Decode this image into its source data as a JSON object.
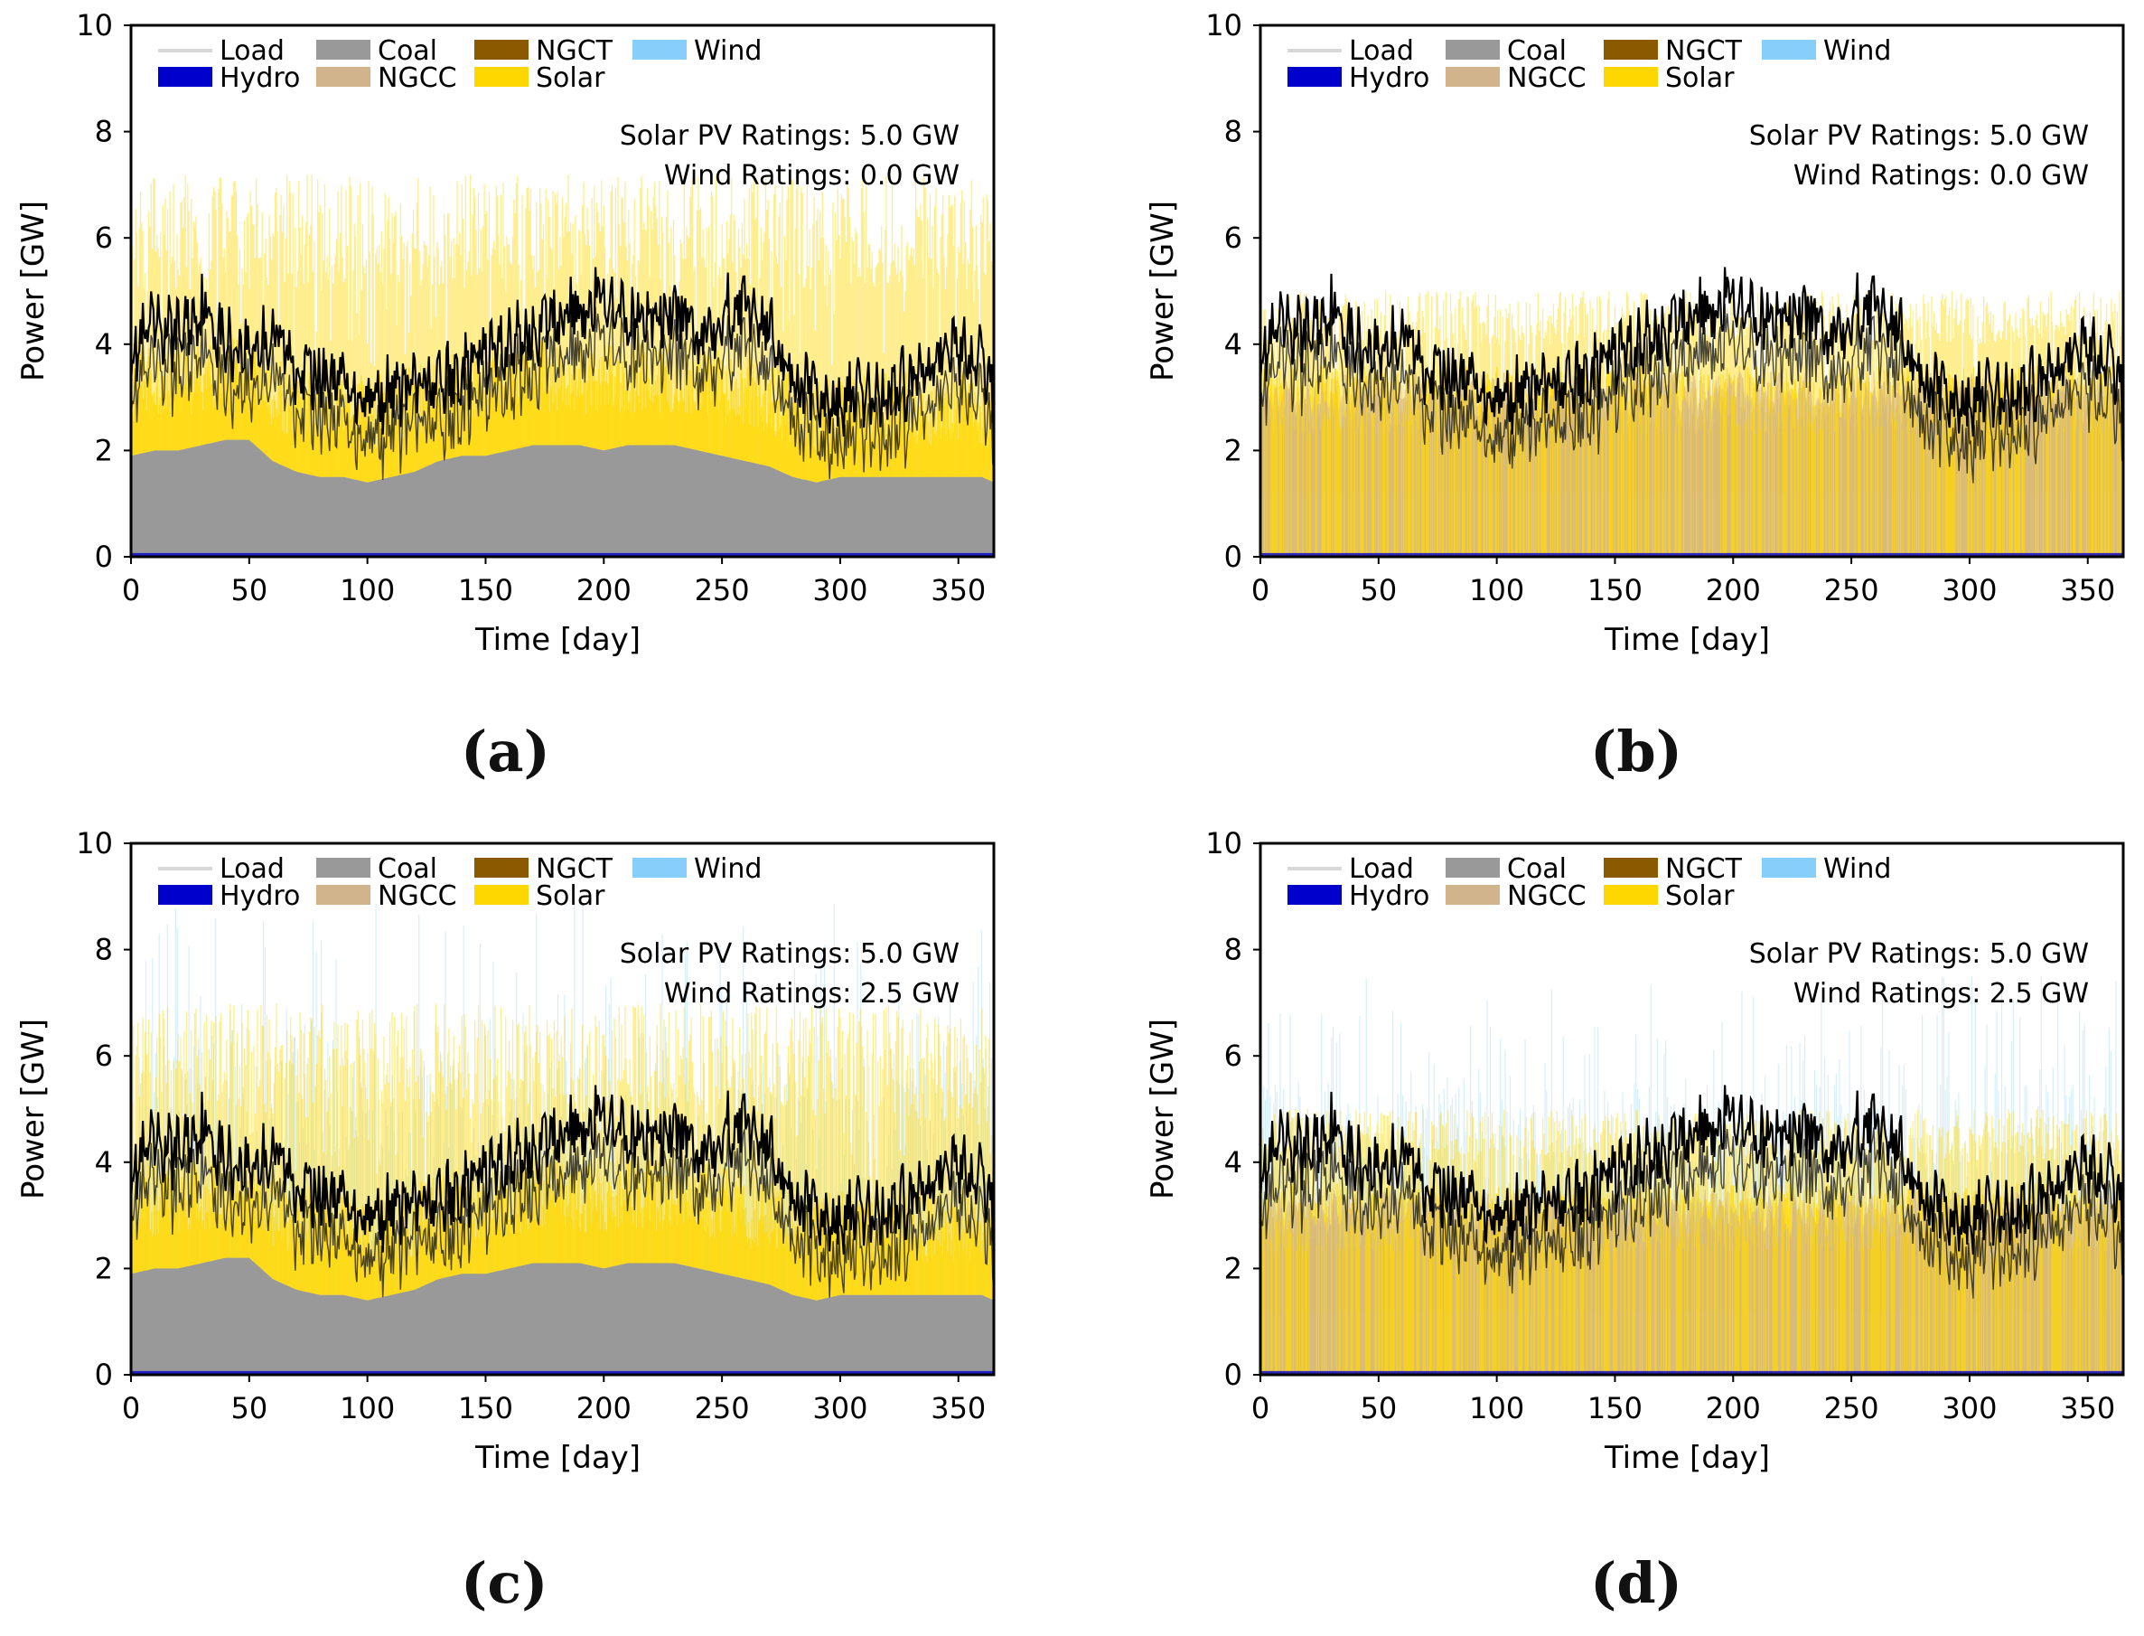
{
  "common": {
    "xlabel": "Time [day]",
    "ylabel": "Power [GW]",
    "x_ticks": [
      "0",
      "50",
      "100",
      "150",
      "200",
      "250",
      "300",
      "350"
    ],
    "y_ticks": [
      "0",
      "2",
      "4",
      "6",
      "8",
      "10"
    ],
    "legend": [
      {
        "label": "Load",
        "color": "#d8d8d8"
      },
      {
        "label": "Coal",
        "color": "#999999"
      },
      {
        "label": "NGCT",
        "color": "#8b5a00"
      },
      {
        "label": "Wind",
        "color": "#87cefa"
      },
      {
        "label": "Hydro",
        "color": "#0000cd"
      },
      {
        "label": "NGCC",
        "color": "#d2b48c"
      },
      {
        "label": "Solar",
        "color": "#ffd700"
      }
    ]
  },
  "panels": [
    {
      "caption": "(a)",
      "solar_text": "Solar PV Ratings: 5.0 GW",
      "wind_text": "Wind Ratings: 0.0 GW"
    },
    {
      "caption": "(b)",
      "solar_text": "Solar PV Ratings: 5.0 GW",
      "wind_text": "Wind Ratings: 0.0 GW"
    },
    {
      "caption": "(c)",
      "solar_text": "Solar PV Ratings: 5.0 GW",
      "wind_text": "Wind Ratings: 2.5 GW"
    },
    {
      "caption": "(d)",
      "solar_text": "Solar PV Ratings: 5.0 GW",
      "wind_text": "Wind Ratings: 2.5 GW"
    }
  ],
  "chart_data": [
    {
      "type": "area",
      "title": "(a)",
      "xlabel": "Time [day]",
      "ylabel": "Power [GW]",
      "xlim": [
        0,
        365
      ],
      "ylim": [
        0,
        10
      ],
      "series": [
        {
          "name": "Load",
          "days": [
            0,
            10,
            20,
            30,
            40,
            50,
            60,
            70,
            80,
            90,
            100,
            110,
            120,
            130,
            140,
            150,
            160,
            170,
            180,
            190,
            200,
            210,
            220,
            230,
            240,
            250,
            260,
            270,
            280,
            290,
            300,
            310,
            320,
            330,
            340,
            350,
            360,
            365
          ],
          "values": [
            3.8,
            4.3,
            4.2,
            4.7,
            4.0,
            3.9,
            4.2,
            3.6,
            3.4,
            3.3,
            3.0,
            3.1,
            3.2,
            3.2,
            3.4,
            3.8,
            4.0,
            4.2,
            4.5,
            4.7,
            4.8,
            4.4,
            4.5,
            4.6,
            4.2,
            4.6,
            4.8,
            4.3,
            3.4,
            3.0,
            2.9,
            3.0,
            3.1,
            3.3,
            3.9,
            4.0,
            3.6,
            3.2
          ]
        },
        {
          "name": "Coal",
          "days": [
            0,
            10,
            20,
            30,
            40,
            50,
            60,
            70,
            80,
            90,
            100,
            110,
            120,
            130,
            140,
            150,
            160,
            170,
            180,
            190,
            200,
            210,
            220,
            230,
            240,
            250,
            260,
            270,
            280,
            290,
            300,
            310,
            320,
            330,
            340,
            350,
            360,
            365
          ],
          "values": [
            1.9,
            2.0,
            2.0,
            2.1,
            2.2,
            2.2,
            1.8,
            1.6,
            1.5,
            1.5,
            1.4,
            1.5,
            1.6,
            1.8,
            1.9,
            1.9,
            2.0,
            2.1,
            2.1,
            2.1,
            2.0,
            2.1,
            2.1,
            2.1,
            2.0,
            1.9,
            1.8,
            1.7,
            1.5,
            1.4,
            1.5,
            1.5,
            1.5,
            1.5,
            1.5,
            1.5,
            1.5,
            1.4
          ]
        },
        {
          "name": "Hydro",
          "values": "~0.05 GW (near zero throughout)"
        },
        {
          "name": "Solar",
          "peak_range_gw": [
            5.5,
            7.2
          ]
        },
        {
          "name": "Wind",
          "rating_gw": 0.0
        }
      ]
    },
    {
      "type": "area",
      "title": "(b)",
      "xlabel": "Time [day]",
      "ylabel": "Power [GW]",
      "xlim": [
        0,
        365
      ],
      "ylim": [
        0,
        10
      ],
      "series": [
        {
          "name": "Load",
          "note": "same load profile as (a)"
        },
        {
          "name": "NGCC",
          "base_gw": [
            2.5,
            3.5
          ]
        },
        {
          "name": "Solar",
          "peak_range_gw": [
            4.5,
            5.0
          ]
        },
        {
          "name": "Hydro",
          "values": "~0.05 GW (near zero throughout)"
        },
        {
          "name": "Wind",
          "rating_gw": 0.0
        }
      ]
    },
    {
      "type": "area",
      "title": "(c)",
      "xlabel": "Time [day]",
      "ylabel": "Power [GW]",
      "xlim": [
        0,
        365
      ],
      "ylim": [
        0,
        10
      ],
      "series": [
        {
          "name": "Load",
          "note": "same load profile as (a)"
        },
        {
          "name": "Coal",
          "note": "same coal profile as (a)"
        },
        {
          "name": "Solar",
          "peak_range_gw": [
            5.5,
            7.0
          ]
        },
        {
          "name": "Wind",
          "peak_range_gw": [
            6.0,
            9.0
          ],
          "rating_gw": 2.5
        },
        {
          "name": "Hydro",
          "values": "~0.05 GW (near zero throughout)"
        }
      ]
    },
    {
      "type": "area",
      "title": "(d)",
      "xlabel": "Time [day]",
      "ylabel": "Power [GW]",
      "xlim": [
        0,
        365
      ],
      "ylim": [
        0,
        10
      ],
      "series": [
        {
          "name": "Load",
          "note": "same load profile as (a)"
        },
        {
          "name": "NGCC",
          "base_gw": [
            2.5,
            3.5
          ]
        },
        {
          "name": "Solar",
          "peak_range_gw": [
            4.5,
            5.0
          ]
        },
        {
          "name": "Wind",
          "peak_range_gw": [
            5.0,
            7.5
          ],
          "rating_gw": 2.5
        },
        {
          "name": "Hydro",
          "values": "~0.05 GW (near zero throughout)"
        }
      ]
    }
  ]
}
